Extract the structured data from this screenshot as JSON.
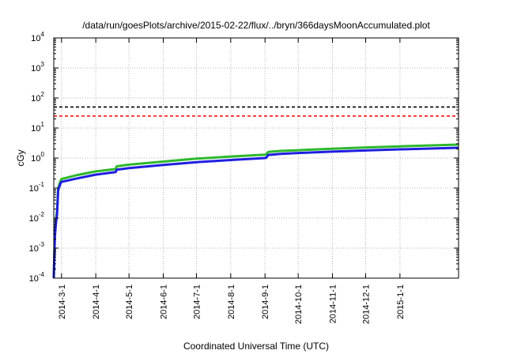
{
  "chart_data": {
    "type": "line",
    "title": "/data/run/goesPlots/archive/2015-02-22/flux/../bryn/366daysMoonAccumulated.plot",
    "xlabel": "Coordinated Universal Time (UTC)",
    "ylabel": "cGy",
    "yscale": "log",
    "ylim": [
      0.0001,
      10000
    ],
    "xlim": [
      "2014-02-22",
      "2015-02-23"
    ],
    "grid": true,
    "legend": "none",
    "yticks": [
      {
        "base": "10",
        "exp": "-4"
      },
      {
        "base": "10",
        "exp": "-3"
      },
      {
        "base": "10",
        "exp": "-2"
      },
      {
        "base": "10",
        "exp": "-1"
      },
      {
        "base": "10",
        "exp": "0"
      },
      {
        "base": "10",
        "exp": "1"
      },
      {
        "base": "10",
        "exp": "2"
      },
      {
        "base": "10",
        "exp": "3"
      },
      {
        "base": "10",
        "exp": "4"
      }
    ],
    "xticks": [
      "2014-3-1",
      "2014-4-1",
      "2014-5-1",
      "2014-6-1",
      "2014-7-1",
      "2014-8-1",
      "2014-9-1",
      "2014-10-1",
      "2014-11-1",
      "2014-12-1",
      "2015-1-1"
    ],
    "reference_lines": [
      {
        "y": 50,
        "color": "#000000",
        "style": "dashed"
      },
      {
        "y": 25,
        "color": "#ff0000",
        "style": "dashed"
      }
    ],
    "series": [
      {
        "color": "#2db82d",
        "x": [
          "2014-02-22",
          "2014-02-23",
          "2014-02-24",
          "2014-02-25",
          "2014-02-26",
          "2014-02-28",
          "2014-03-01",
          "2014-03-15",
          "2014-04-01",
          "2014-04-19",
          "2014-04-20",
          "2014-05-01",
          "2014-06-01",
          "2014-07-01",
          "2014-08-01",
          "2014-09-01",
          "2014-09-02",
          "2014-09-04",
          "2014-09-15",
          "2014-10-01",
          "2014-11-01",
          "2014-12-01",
          "2015-01-01",
          "2015-02-23"
        ],
        "y": [
          0.0001,
          0.003,
          0.009,
          0.018,
          0.1,
          0.17,
          0.2,
          0.27,
          0.36,
          0.43,
          0.53,
          0.6,
          0.76,
          0.95,
          1.12,
          1.3,
          1.32,
          1.6,
          1.72,
          1.82,
          2.05,
          2.25,
          2.45,
          2.8
        ]
      },
      {
        "color": "#1f1fe0",
        "x": [
          "2014-02-22",
          "2014-02-23",
          "2014-02-24",
          "2014-02-25",
          "2014-02-26",
          "2014-02-28",
          "2014-03-01",
          "2014-03-15",
          "2014-04-01",
          "2014-04-19",
          "2014-04-20",
          "2014-05-01",
          "2014-06-01",
          "2014-07-01",
          "2014-08-01",
          "2014-09-01",
          "2014-09-02",
          "2014-09-04",
          "2014-09-15",
          "2014-10-01",
          "2014-11-01",
          "2014-12-01",
          "2015-01-01",
          "2015-02-23"
        ],
        "y": [
          0.0001,
          0.0025,
          0.007,
          0.014,
          0.085,
          0.14,
          0.16,
          0.21,
          0.28,
          0.34,
          0.41,
          0.46,
          0.59,
          0.73,
          0.86,
          1.0,
          1.02,
          1.27,
          1.38,
          1.47,
          1.63,
          1.79,
          1.95,
          2.2
        ]
      }
    ]
  }
}
